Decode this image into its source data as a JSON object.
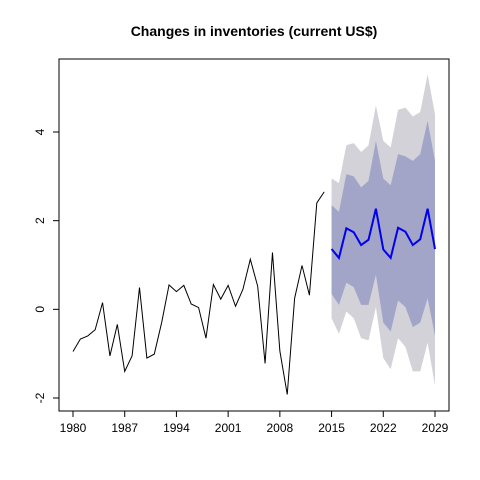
{
  "chart_data": {
    "type": "line",
    "title": "Changes in inventories (current US$)",
    "xlabel": "",
    "ylabel": "",
    "xlim": [
      1980,
      2029
    ],
    "ylim": [
      -2,
      5
    ],
    "x_ticks": [
      1980,
      1987,
      1994,
      2001,
      2008,
      2015,
      2022,
      2029
    ],
    "y_ticks": [
      -2,
      0,
      2,
      4
    ],
    "grid": false,
    "legend": "none",
    "series": [
      {
        "role": "historical",
        "color": "#000000",
        "x": [
          1980,
          1981,
          1982,
          1983,
          1984,
          1985,
          1986,
          1987,
          1988,
          1989,
          1990,
          1991,
          1992,
          1993,
          1994,
          1995,
          1996,
          1997,
          1998,
          1999,
          2000,
          2001,
          2002,
          2003,
          2004,
          2005,
          2006,
          2007,
          2008,
          2009,
          2010,
          2011,
          2012,
          2013,
          2014
        ],
        "y": [
          -0.95,
          -0.67,
          -0.6,
          -0.46,
          0.15,
          -1.05,
          -0.34,
          -1.4,
          -1.05,
          0.49,
          -1.1,
          -1.01,
          -0.3,
          0.55,
          0.4,
          0.54,
          0.12,
          0.04,
          -0.65,
          0.56,
          0.23,
          0.54,
          0.07,
          0.45,
          1.13,
          0.52,
          -1.22,
          1.28,
          -0.94,
          -1.92,
          0.25,
          0.99,
          0.32,
          2.4,
          2.65
        ]
      },
      {
        "role": "forecast",
        "color": "#0000ee",
        "x": [
          2015,
          2016,
          2017,
          2018,
          2019,
          2020,
          2021,
          2022,
          2023,
          2024,
          2025,
          2026,
          2027,
          2028,
          2029
        ],
        "y": [
          1.36,
          1.16,
          1.83,
          1.74,
          1.45,
          1.57,
          2.27,
          1.35,
          1.16,
          1.84,
          1.75,
          1.45,
          1.58,
          2.27,
          1.36
        ],
        "band_80": {
          "color": "#a2a5c8",
          "lower": [
            0.35,
            0.1,
            0.6,
            0.5,
            0.1,
            0.1,
            0.78,
            -0.3,
            -0.5,
            0.2,
            0.05,
            -0.4,
            -0.3,
            0.25,
            -0.6
          ],
          "upper": [
            2.35,
            2.2,
            3.05,
            3.0,
            2.75,
            2.9,
            3.8,
            2.95,
            2.8,
            3.5,
            3.45,
            3.35,
            3.5,
            4.25,
            3.35
          ]
        },
        "band_95": {
          "color": "#d2d2d8",
          "lower": [
            -0.2,
            -0.55,
            -0.05,
            -0.2,
            -0.65,
            -0.7,
            0.05,
            -1.1,
            -1.35,
            -0.65,
            -0.85,
            -1.4,
            -1.4,
            -0.75,
            -1.72
          ],
          "upper": [
            2.95,
            2.85,
            3.7,
            3.75,
            3.55,
            3.7,
            4.6,
            3.8,
            3.65,
            4.5,
            4.55,
            4.35,
            4.45,
            5.3,
            4.4
          ]
        }
      }
    ]
  }
}
